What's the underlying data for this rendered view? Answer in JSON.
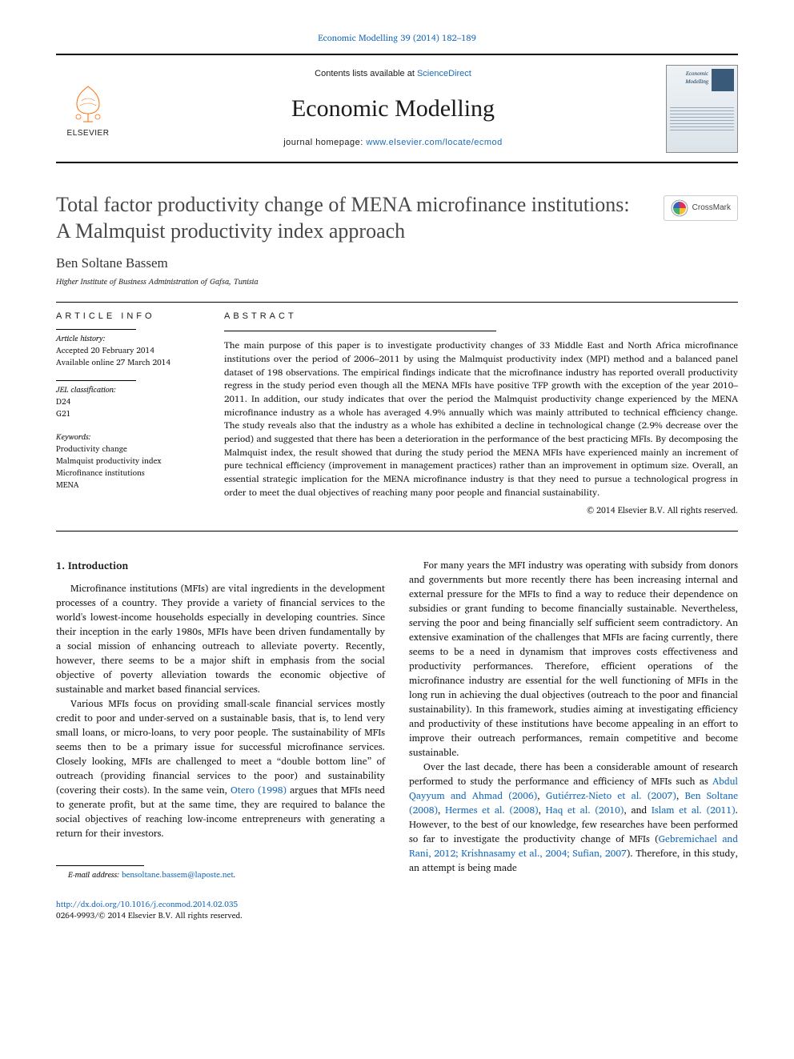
{
  "top_citation": {
    "journal_link_text": "Economic Modelling 39 (2014) 182–189"
  },
  "masthead": {
    "contents_prefix": "Contents lists available at ",
    "contents_link": "ScienceDirect",
    "journal_title": "Economic Modelling",
    "homepage_prefix": "journal homepage: ",
    "homepage_url": "www.elsevier.com/locate/ecmod",
    "publisher_name": "ELSEVIER",
    "cover_title": "Economic Modelling"
  },
  "crossmark_label": "CrossMark",
  "article": {
    "title": "Total factor productivity change of MENA microfinance institutions: A Malmquist productivity index approach",
    "author": "Ben Soltane Bassem",
    "affiliation": "Higher Institute of Business Administration of Gafsa, Tunisia"
  },
  "article_info": {
    "heading": "ARTICLE INFO",
    "history_label": "Article history:",
    "history_lines": [
      "Accepted 20 February 2014",
      "Available online 27 March 2014"
    ],
    "jel_label": "JEL classification:",
    "jel_codes": [
      "D24",
      "G21"
    ],
    "keywords_label": "Keywords:",
    "keywords": [
      "Productivity change",
      "Malmquist productivity index",
      "Microfinance institutions",
      "MENA"
    ]
  },
  "abstract": {
    "heading": "ABSTRACT",
    "text": "The main purpose of this paper is to investigate productivity changes of 33 Middle East and North Africa microfinance institutions over the period of 2006–2011 by using the Malmquist productivity index (MPI) method and a balanced panel dataset of 198 observations. The empirical findings indicate that the microfinance industry has reported overall productivity regress in the study period even though all the MENA MFIs have positive TFP growth with the exception of the year 2010–2011. In addition, our study indicates that over the period the Malmquist productivity change experienced by the MENA microfinance industry as a whole has averaged 4.9% annually which was mainly attributed to technical efficiency change. The study reveals also that the industry as a whole has exhibited a decline in technological change (2.9% decrease over the period) and suggested that there has been a deterioration in the performance of the best practicing MFIs. By decomposing the Malmquist index, the result showed that during the study period the MENA MFIs have experienced mainly an increment of pure technical efficiency (improvement in management practices) rather than an improvement in optimum size. Overall, an essential strategic implication for the MENA microfinance industry is that they need to pursue a technological progress in order to meet the dual objectives of reaching many poor people and financial sustainability.",
    "copyright": "© 2014 Elsevier B.V. All rights reserved."
  },
  "body": {
    "section_heading": "1. Introduction",
    "left_paras": [
      "Microfinance institutions (MFIs) are vital ingredients in the development processes of a country. They provide a variety of financial services to the world's lowest-income households especially in developing countries. Since their inception in the early 1980s, MFIs have been driven fundamentally by a social mission of enhancing outreach to alleviate poverty. Recently, however, there seems to be a major shift in emphasis from the social objective of poverty alleviation towards the economic objective of sustainable and market based financial services.",
      "Various MFIs focus on providing small-scale financial services mostly credit to poor and under-served on a sustainable basis, that is, to lend very small loans, or micro-loans, to very poor people. The sustainability of MFIs seems then to be a primary issue for successful microfinance services. Closely looking, MFIs are challenged to meet a “double bottom line” of outreach (providing financial services to the poor) and sustainability (covering their costs). In the same vein, Otero (1998) argues that MFIs need to generate profit, but at the same time, they are required to balance the social objectives of reaching low-income entrepreneurs with generating a return for their investors."
    ],
    "right_paras": [
      "For many years the MFI industry was operating with subsidy from donors and governments but more recently there has been increasing internal and external pressure for the MFIs to find a way to reduce their dependence on subsidies or grant funding to become financially sustainable. Nevertheless, serving the poor and being financially self sufficient seem contradictory. An extensive examination of the challenges that MFIs are facing currently, there seems to be a need in dynamism that improves costs effectiveness and productivity performances. Therefore, efficient operations of the microfinance industry are essential for the well functioning of MFIs in the long run in achieving the dual objectives (outreach to the poor and financial sustainability). In this framework, studies aiming at investigating efficiency and productivity of these institutions have become appealing in an effort to improve their outreach performances, remain competitive and become sustainable.",
      "Over the last decade, there has been a considerable amount of research performed to study the performance and efficiency of MFIs such as Abdul Qayyum and Ahmad (2006), Gutiérrez-Nieto et al. (2007), Ben Soltane (2008), Hermes et al. (2008), Haq et al. (2010), and Islam et al. (2011). However, to the best of our knowledge, few researches have been performed so far to investigate the productivity change of MFIs (Gebremichael and Rani, 2012; Krishnasamy et al., 2004; Sufian, 2007). Therefore, in this study, an attempt is being made"
    ]
  },
  "footnote": {
    "label": "E-mail address:",
    "email": "bensoltane.bassem@laposte.net"
  },
  "doi": {
    "url": "http://dx.doi.org/10.1016/j.econmod.2014.02.035",
    "issn_line": "0264-9993/© 2014 Elsevier B.V. All rights reserved."
  },
  "colors": {
    "link": "#1a6bb8",
    "text": "#1a1a1a",
    "title_gray": "#484848",
    "elsevier_orange": "#ff6a00",
    "crossmark_colors": [
      "#e03050",
      "#3a60c0",
      "#f5c030",
      "#40b070"
    ]
  }
}
